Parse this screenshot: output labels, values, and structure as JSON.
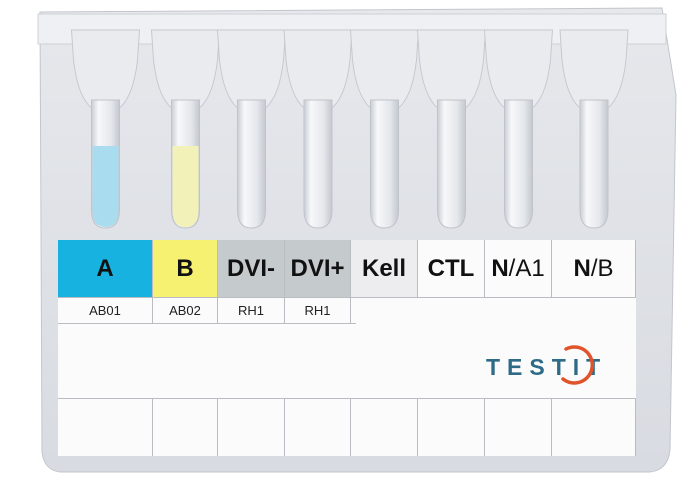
{
  "tests": [
    {
      "name": "A",
      "sub": "AB01",
      "color": "#17b2df",
      "liquid": "#a8dcee"
    },
    {
      "name": "B",
      "sub": "AB02",
      "color": "#f6f170",
      "liquid": "#f2f1b8"
    },
    {
      "name": "DVI-",
      "sub": "RH1",
      "color": "#c5cacd",
      "liquid": ""
    },
    {
      "name": "DVI+",
      "sub": "RH1",
      "color": "#c5cacd",
      "liquid": ""
    },
    {
      "name": "Kell",
      "sub": "",
      "color": "#ededef",
      "liquid": ""
    },
    {
      "name": "CTL",
      "sub": "",
      "color": "#fbfbfc",
      "liquid": ""
    },
    {
      "name_bold": "N",
      "name_light": "/A1",
      "sub": "",
      "color": "#fbfbfc",
      "liquid": ""
    },
    {
      "name_bold": "N",
      "name_light": "/B",
      "sub": "",
      "color": "#fbfbfc",
      "liquid": ""
    }
  ],
  "logo": {
    "text_a": "TEST",
    "text_b": "IT",
    "color": "#2e6b86",
    "accent": "#e0542c"
  }
}
